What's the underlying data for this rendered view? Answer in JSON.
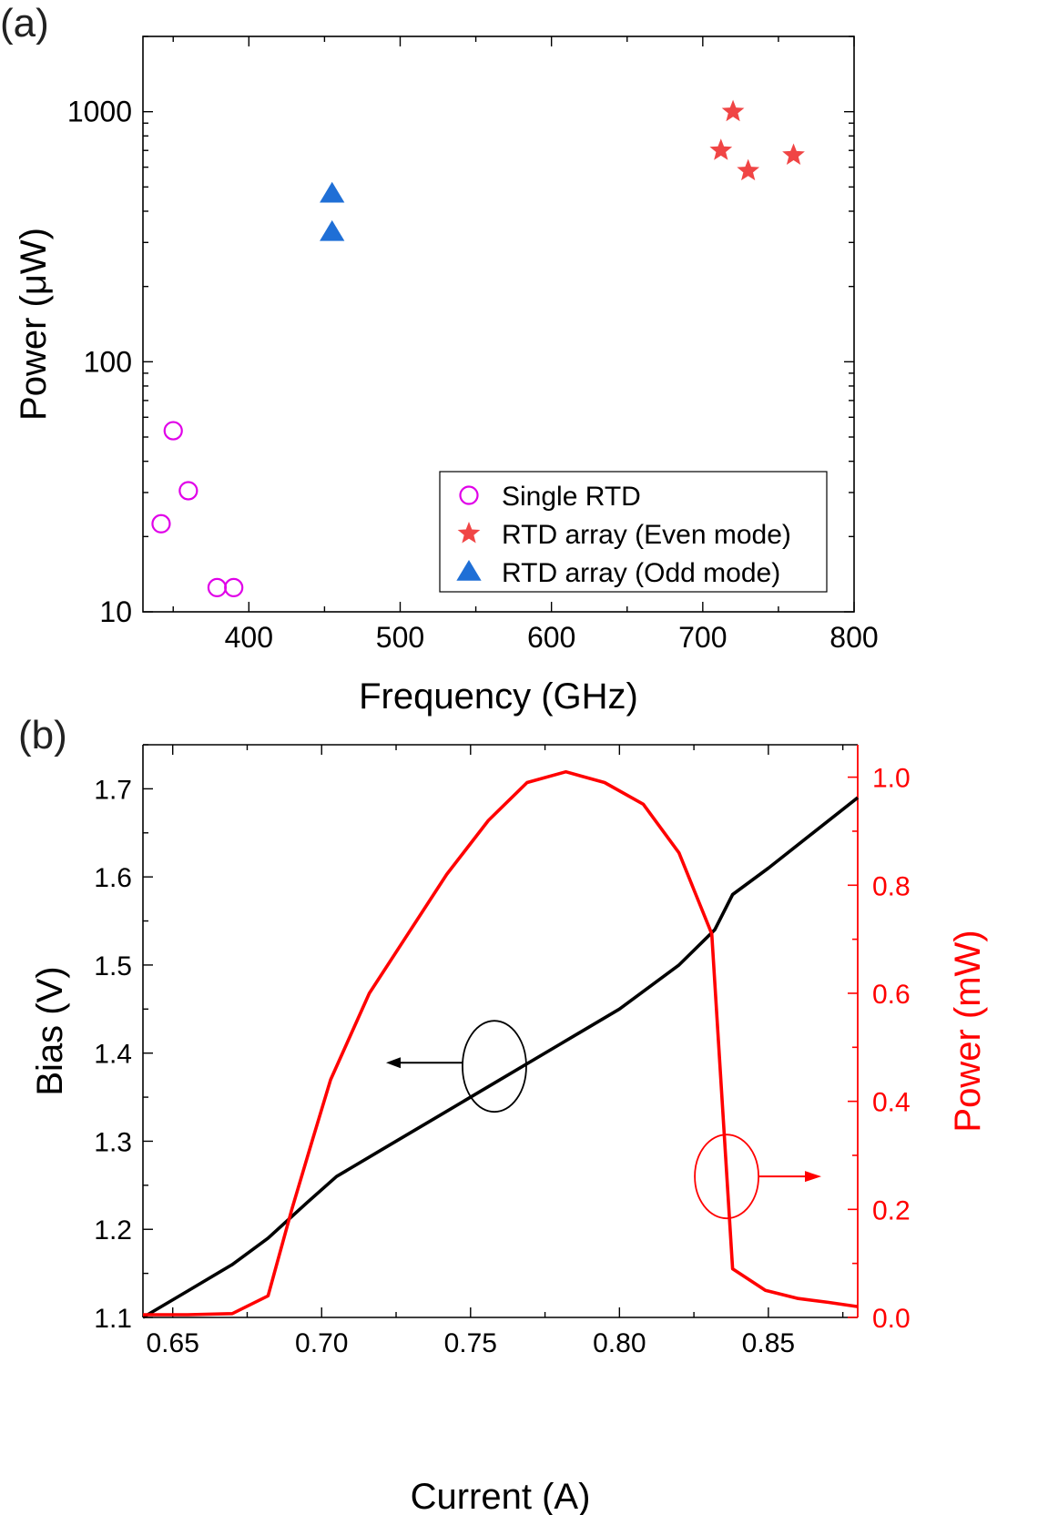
{
  "chart_data": [
    {
      "panel_label": "(a)",
      "type": "scatter",
      "xlabel": "Frequency (GHz)",
      "ylabel": "Power (μW)",
      "xlim": [
        330,
        800
      ],
      "ylim": [
        10,
        2000
      ],
      "yscale": "log",
      "xticks": [
        400,
        500,
        600,
        700,
        800
      ],
      "yticks": [
        10,
        100,
        1000
      ],
      "legend_position": "bottom-right",
      "series": [
        {
          "name": "Single RTD",
          "marker": "open-circle",
          "color": "#e000e8",
          "points": [
            [
              342,
              22.5
            ],
            [
              350,
              53
            ],
            [
              360,
              30.5
            ],
            [
              379,
              12.5
            ],
            [
              390,
              12.5
            ]
          ]
        },
        {
          "name": "RTD array (Even mode)",
          "marker": "star",
          "color": "#f04545",
          "points": [
            [
              712,
              700
            ],
            [
              720,
              1000
            ],
            [
              730,
              580
            ],
            [
              760,
              670
            ]
          ]
        },
        {
          "name": "RTD array (Odd mode)",
          "marker": "triangle",
          "color": "#1f6fd6",
          "points": [
            [
              455,
              470
            ],
            [
              455,
              330
            ]
          ]
        }
      ]
    },
    {
      "panel_label": "(b)",
      "type": "line",
      "xlabel": "Current (A)",
      "ylabel_left": "Bias (V)",
      "ylabel_right": "Power (mW)",
      "xlim": [
        0.64,
        0.88
      ],
      "ylim_left": [
        1.1,
        1.75
      ],
      "ylim_right": [
        0.0,
        1.06
      ],
      "xticks": [
        0.65,
        0.7,
        0.75,
        0.8,
        0.85
      ],
      "xtick_labels": [
        "0.65",
        "0.70",
        "0.75",
        "0.80",
        "0.85"
      ],
      "yticks_left": [
        1.1,
        1.2,
        1.3,
        1.4,
        1.5,
        1.6,
        1.7
      ],
      "yticks_right": [
        0.0,
        0.2,
        0.4,
        0.6,
        0.8,
        1.0
      ],
      "series": [
        {
          "name": "Bias",
          "axis": "left",
          "color": "#000000",
          "x": [
            0.64,
            0.655,
            0.67,
            0.682,
            0.695,
            0.705,
            0.72,
            0.74,
            0.76,
            0.78,
            0.8,
            0.82,
            0.832,
            0.838,
            0.85,
            0.865,
            0.88
          ],
          "y": [
            1.1,
            1.13,
            1.16,
            1.19,
            1.23,
            1.26,
            1.29,
            1.33,
            1.37,
            1.41,
            1.45,
            1.5,
            1.54,
            1.58,
            1.61,
            1.65,
            1.69
          ]
        },
        {
          "name": "Power",
          "axis": "right",
          "color": "#ff0000",
          "x": [
            0.64,
            0.655,
            0.67,
            0.682,
            0.69,
            0.697,
            0.703,
            0.716,
            0.729,
            0.742,
            0.756,
            0.769,
            0.782,
            0.795,
            0.808,
            0.82,
            0.831,
            0.838,
            0.849,
            0.86,
            0.87,
            0.88
          ],
          "y": [
            0.005,
            0.005,
            0.007,
            0.04,
            0.2,
            0.33,
            0.44,
            0.6,
            0.71,
            0.82,
            0.92,
            0.99,
            1.01,
            0.99,
            0.95,
            0.86,
            0.71,
            0.09,
            0.05,
            0.035,
            0.028,
            0.02
          ]
        }
      ],
      "annotations": [
        {
          "type": "ellipse-arrow",
          "color": "#000000",
          "at": [
            0.758,
            1.385
          ],
          "direction": "left",
          "points_to": "left axis"
        },
        {
          "type": "ellipse-arrow",
          "color": "#ff0000",
          "at": [
            0.836,
            1.26
          ],
          "direction": "right",
          "points_to": "right axis"
        }
      ]
    }
  ]
}
